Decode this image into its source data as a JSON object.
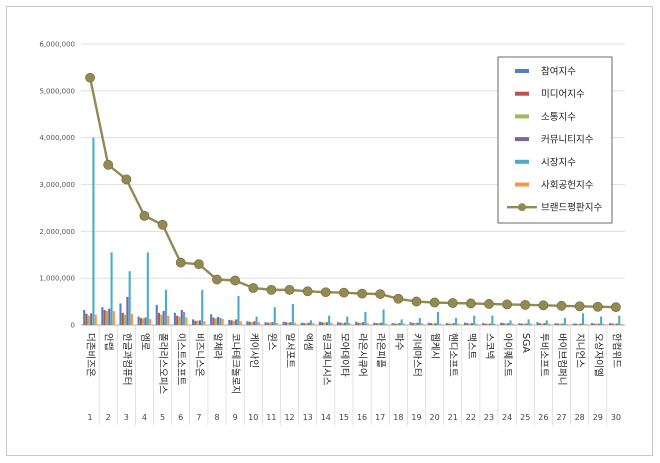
{
  "chart_data": {
    "type": "bar",
    "title": "",
    "xlabel": "",
    "ylabel": "",
    "ylim": [
      0,
      6000000
    ],
    "yticks": [
      "0",
      "1,000,000",
      "2,000,000",
      "3,000,000",
      "4,000,000",
      "5,000,000",
      "6,000,000"
    ],
    "grid": true,
    "legend_position": "right",
    "ranks": [
      "1",
      "2",
      "3",
      "4",
      "5",
      "6",
      "7",
      "8",
      "9",
      "10",
      "11",
      "12",
      "13",
      "14",
      "15",
      "16",
      "17",
      "18",
      "19",
      "20",
      "21",
      "22",
      "23",
      "24",
      "25",
      "26",
      "27",
      "28",
      "29",
      "30"
    ],
    "categories": [
      "더존비즈온",
      "안랩",
      "한글과컴퓨터",
      "엠로",
      "폴라리스오피스",
      "이스트소프트",
      "비즈니스온",
      "알체라",
      "코나테크놀로지",
      "케이사인",
      "윈스",
      "알서포트",
      "엑셈",
      "링크제니시스",
      "모아데이타",
      "라온시큐어",
      "라온피플",
      "파수",
      "키네마스터",
      "웹케시",
      "핸디소프트",
      "맥스트",
      "스코넥",
      "아이퀘스트",
      "SGA",
      "투비소프트",
      "바이브컴퍼니",
      "지니언스",
      "오상자이엘",
      "한컴위드"
    ],
    "series": [
      {
        "name": "참여지수",
        "color": "#4f81bd",
        "values": [
          320000,
          380000,
          460000,
          180000,
          430000,
          260000,
          120000,
          230000,
          110000,
          80000,
          60000,
          70000,
          50000,
          70000,
          60000,
          70000,
          50000,
          40000,
          60000,
          50000,
          40000,
          50000,
          40000,
          50000,
          40000,
          60000,
          40000,
          30000,
          40000,
          40000
        ]
      },
      {
        "name": "미디어지수",
        "color": "#c0504d",
        "values": [
          240000,
          320000,
          260000,
          150000,
          260000,
          200000,
          90000,
          160000,
          100000,
          70000,
          50000,
          60000,
          40000,
          60000,
          50000,
          50000,
          40000,
          30000,
          40000,
          40000,
          30000,
          40000,
          30000,
          40000,
          30000,
          40000,
          30000,
          30000,
          30000,
          30000
        ]
      },
      {
        "name": "소통지수",
        "color": "#9bbb59",
        "values": [
          200000,
          300000,
          220000,
          140000,
          220000,
          180000,
          90000,
          140000,
          90000,
          60000,
          50000,
          50000,
          40000,
          50000,
          40000,
          50000,
          40000,
          30000,
          40000,
          30000,
          30000,
          30000,
          30000,
          30000,
          30000,
          30000,
          30000,
          20000,
          30000,
          30000
        ]
      },
      {
        "name": "커뮤니티지수",
        "color": "#8064a2",
        "values": [
          250000,
          350000,
          600000,
          160000,
          300000,
          320000,
          100000,
          170000,
          120000,
          80000,
          60000,
          60000,
          50000,
          60000,
          50000,
          60000,
          50000,
          40000,
          50000,
          40000,
          40000,
          40000,
          30000,
          40000,
          30000,
          40000,
          30000,
          30000,
          30000,
          30000
        ]
      },
      {
        "name": "시장지수",
        "color": "#4bacc6",
        "values": [
          4000000,
          1550000,
          1150000,
          1550000,
          750000,
          280000,
          750000,
          150000,
          620000,
          180000,
          380000,
          450000,
          100000,
          200000,
          180000,
          280000,
          330000,
          120000,
          150000,
          280000,
          150000,
          200000,
          200000,
          100000,
          120000,
          100000,
          150000,
          250000,
          180000,
          200000
        ]
      },
      {
        "name": "사회공헌지수",
        "color": "#f79646",
        "values": [
          220000,
          300000,
          240000,
          130000,
          200000,
          160000,
          80000,
          130000,
          80000,
          60000,
          40000,
          50000,
          40000,
          50000,
          40000,
          40000,
          30000,
          30000,
          40000,
          30000,
          30000,
          30000,
          30000,
          30000,
          30000,
          30000,
          20000,
          20000,
          30000,
          20000
        ]
      }
    ],
    "line": {
      "name": "브랜드평판지수",
      "color": "#938953",
      "values": [
        5280000,
        3420000,
        3110000,
        2330000,
        2140000,
        1330000,
        1300000,
        970000,
        950000,
        790000,
        750000,
        750000,
        720000,
        700000,
        690000,
        670000,
        660000,
        560000,
        500000,
        480000,
        470000,
        460000,
        450000,
        440000,
        430000,
        420000,
        410000,
        400000,
        390000,
        380000
      ]
    }
  }
}
